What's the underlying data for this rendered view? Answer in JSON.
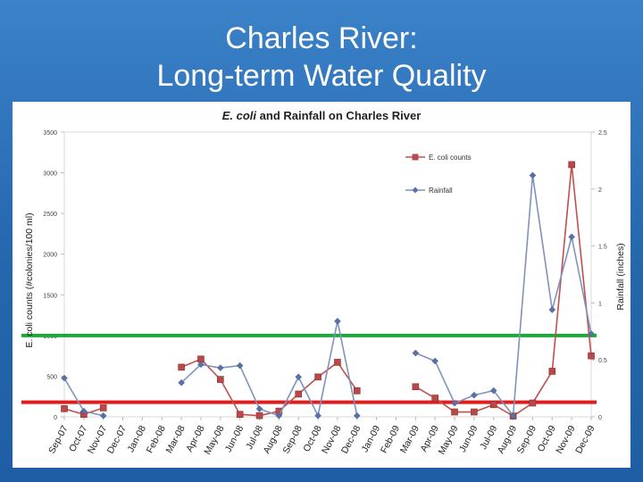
{
  "slide": {
    "title_line1": "Charles River:",
    "title_line2": "Long-term Water Quality"
  },
  "colors": {
    "background": "#2a6fb7",
    "ecoli": "#c0504d",
    "ecoli_marker": "#b8494a",
    "rainfall": "#7e93bd",
    "rainfall_marker": "#5872a8",
    "green_line": "#1fa83a",
    "red_line": "#e31b1b"
  },
  "chart_data": {
    "type": "line",
    "title_italic": "E. coli",
    "title_rest": " and Rainfall on Charles River",
    "ylabel_left": "E. coli counts (#colonies/100 ml)",
    "ylabel_right": "Rainfall (inches)",
    "ylim_left": [
      0,
      3500
    ],
    "ylim_right": [
      0,
      2.5
    ],
    "yticks_left": [
      "0",
      "500",
      "1000",
      "1500",
      "2000",
      "2500",
      "3000",
      "3500"
    ],
    "yticks_right": [
      "0",
      "0.5",
      "1",
      "1.5",
      "2",
      "2.5"
    ],
    "categories": [
      "Sep-07",
      "Oct-07",
      "Nov-07",
      "Dec-07",
      "Jan-08",
      "Feb-08",
      "Mar-08",
      "Apr-08",
      "May-08",
      "Jun-08",
      "Jul-08",
      "Aug-08",
      "Sep-08",
      "Oct-08",
      "Nov-08",
      "Dec-08",
      "Jan-09",
      "Feb-09",
      "Mar-09",
      "Apr-09",
      "May-09",
      "Jun-09",
      "Jul-09",
      "Aug-09",
      "Sep-09",
      "Oct-09",
      "Nov-09",
      "Dec-09"
    ],
    "series": [
      {
        "name": "E. coli counts",
        "axis": "left",
        "marker": "square",
        "values": [
          100,
          30,
          110,
          null,
          null,
          null,
          610,
          710,
          460,
          30,
          15,
          70,
          280,
          490,
          670,
          320,
          null,
          null,
          370,
          230,
          60,
          60,
          150,
          10,
          170,
          560,
          3100,
          750
        ]
      },
      {
        "name": "Rainfall",
        "axis": "right",
        "marker": "diamond",
        "values": [
          0.34,
          0.05,
          0.01,
          null,
          null,
          null,
          0.3,
          0.46,
          0.43,
          0.45,
          0.07,
          0.01,
          0.35,
          0.01,
          0.84,
          0.01,
          null,
          null,
          0.56,
          0.49,
          0.12,
          0.19,
          0.23,
          0.01,
          2.12,
          0.94,
          1.58,
          0.73
        ]
      }
    ],
    "reference_lines": [
      {
        "axis": "left",
        "value": 1000,
        "color_key": "green_line"
      },
      {
        "axis": "left",
        "value": 180,
        "color_key": "red_line"
      }
    ],
    "legend_position": "top-right",
    "grid": false
  }
}
